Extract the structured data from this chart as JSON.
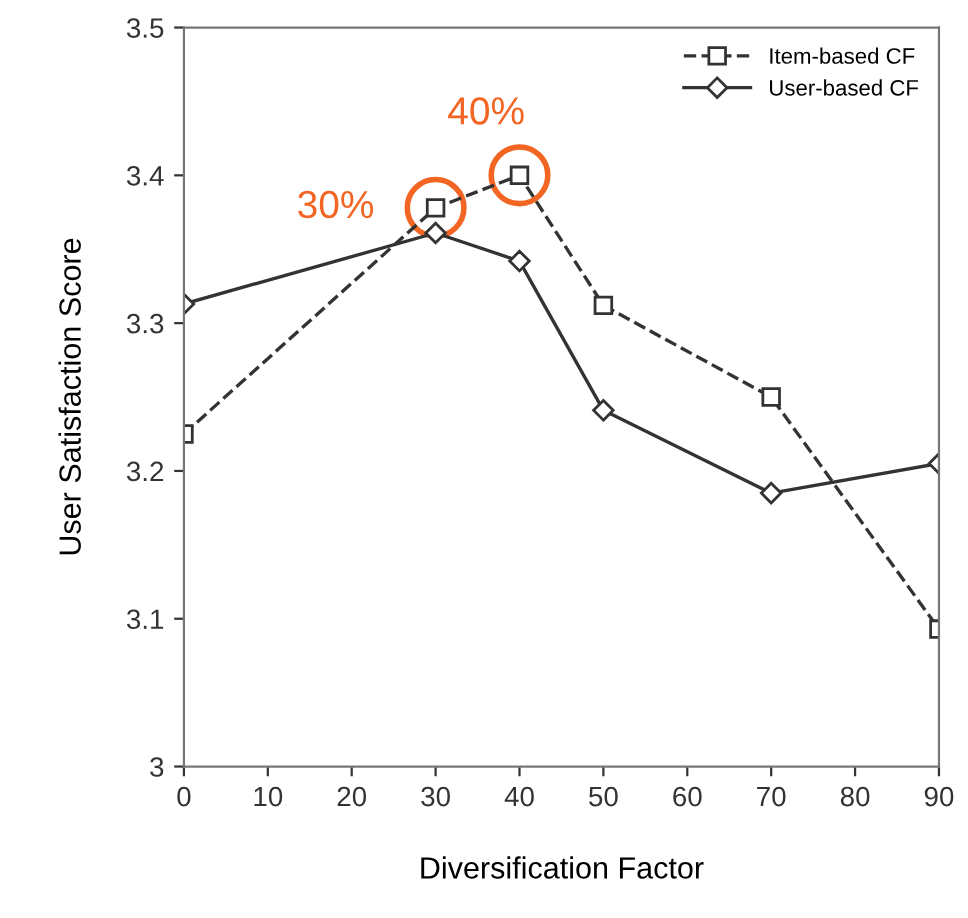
{
  "chart_data": {
    "type": "line",
    "xlabel": "Diversification Factor",
    "ylabel": "User Satisfaction Score",
    "x": [
      0,
      30,
      40,
      50,
      70,
      90
    ],
    "series": [
      {
        "name": "Item-based CF",
        "color": "#333333",
        "marker": "square",
        "line_style": "dashed",
        "values": [
          3.225,
          3.378,
          3.4,
          3.312,
          3.25,
          3.093
        ]
      },
      {
        "name": "User-based CF",
        "color": "#333333",
        "marker": "diamond",
        "line_style": "solid",
        "values": [
          3.313,
          3.361,
          3.342,
          3.241,
          3.185,
          3.205
        ]
      }
    ],
    "xlim": [
      0,
      90
    ],
    "xticks": [
      0,
      10,
      20,
      30,
      40,
      50,
      60,
      70,
      80,
      90
    ],
    "ylim": [
      3,
      3.5
    ],
    "yticks": [
      3,
      3.1,
      3.2,
      3.3,
      3.4,
      3.5
    ],
    "annotations": [
      {
        "text": "30%",
        "x": 30,
        "y": 3.378
      },
      {
        "text": "40%",
        "x": 40,
        "y": 3.4
      }
    ],
    "grid": false,
    "legend": "top right"
  }
}
